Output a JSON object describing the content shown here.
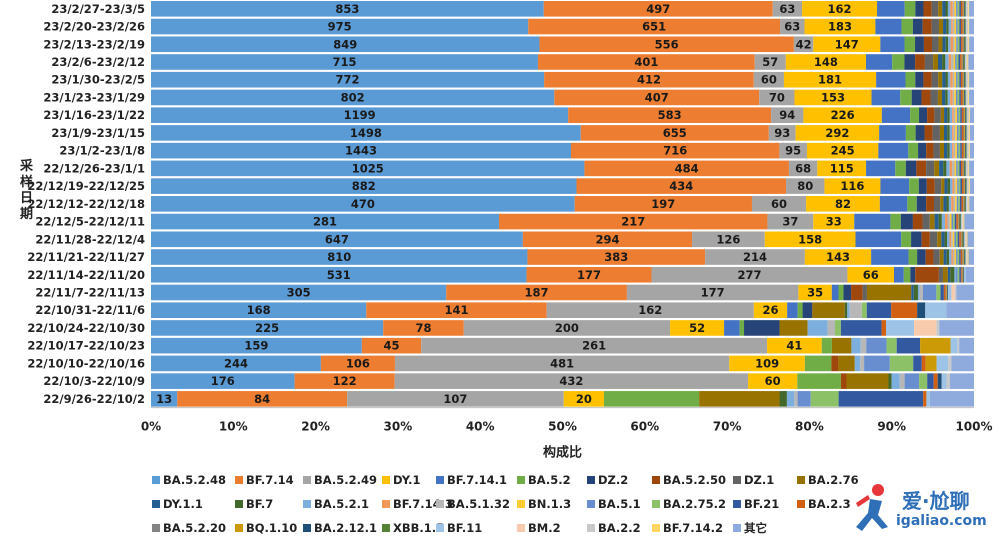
{
  "chart_data": {
    "type": "stacked_bar_horizontal_100",
    "ylabel": "采样日期",
    "xlabel": "构成比",
    "xticks": [
      "0%",
      "10%",
      "20%",
      "30%",
      "40%",
      "50%",
      "60%",
      "70%",
      "80%",
      "90%",
      "100%"
    ],
    "categories": [
      "23/2/27-23/3/5",
      "23/2/20-23/2/26",
      "23/2/13-23/2/19",
      "23/2/6-23/2/12",
      "23/1/30-23/2/5",
      "23/1/23-23/1/29",
      "23/1/16-23/1/22",
      "23/1/9-23/1/15",
      "23/1/2-23/1/8",
      "22/12/26-23/1/1",
      "22/12/19-22/12/25",
      "22/12/12-22/12/18",
      "22/12/5-22/12/11",
      "22/11/28-22/12/4",
      "22/11/21-22/11/27",
      "22/11/14-22/11/20",
      "22/11/7-22/11/13",
      "22/10/31-22/11/6",
      "22/10/24-22/10/30",
      "22/10/17-22/10/23",
      "22/10/10-22/10/16",
      "22/10/3-22/10/9",
      "22/9/26-22/10/2"
    ],
    "series": [
      {
        "name": "BA.5.2.48",
        "color": "#5b9bd5",
        "labels": [
          853,
          975,
          849,
          715,
          772,
          802,
          1199,
          1498,
          1443,
          1025,
          882,
          470,
          281,
          647,
          810,
          531,
          305,
          168,
          225,
          159,
          244,
          176,
          13
        ],
        "pct": [
          48.2,
          46.3,
          48.1,
          47.3,
          48.2,
          49.2,
          51.6,
          53.0,
          51.8,
          53.4,
          53.2,
          54.0,
          43.3,
          45.5,
          48.3,
          46.0,
          35.3,
          26.5,
          31.4,
          27.0,
          21.8,
          17.8,
          3.2
        ]
      },
      {
        "name": "BF.7.14",
        "color": "#ed7d31",
        "labels": [
          497,
          651,
          556,
          401,
          412,
          407,
          583,
          655,
          716,
          484,
          434,
          197,
          217,
          294,
          383,
          177,
          187,
          141,
          78,
          45,
          106,
          122,
          84
        ],
        "pct": [
          28.1,
          30.9,
          31.5,
          26.5,
          25.7,
          25.0,
          25.1,
          23.2,
          25.7,
          25.2,
          26.2,
          22.6,
          33.4,
          20.7,
          22.8,
          15.3,
          21.6,
          22.2,
          10.9,
          7.6,
          9.5,
          12.4,
          20.7
        ]
      },
      {
        "name": "BA.5.2.49",
        "color": "#a5a5a5",
        "labels": [
          63,
          63,
          42,
          57,
          60,
          70,
          94,
          93,
          95,
          68,
          80,
          60,
          37,
          126,
          214,
          277,
          177,
          162,
          200,
          261,
          481,
          432,
          107
        ],
        "pct": [
          3.6,
          3.0,
          2.4,
          3.8,
          3.7,
          4.3,
          4.0,
          3.3,
          3.4,
          3.5,
          4.8,
          6.9,
          5.7,
          8.9,
          12.8,
          24.0,
          20.5,
          25.5,
          27.9,
          44.3,
          42.9,
          43.8,
          26.4
        ]
      },
      {
        "name": "DY.1",
        "color": "#ffc000",
        "labels": [
          162,
          183,
          147,
          148,
          181,
          153,
          226,
          292,
          245,
          115,
          116,
          82,
          33,
          158,
          143,
          66,
          35,
          26,
          52,
          41,
          109,
          60,
          20
        ],
        "pct": [
          9.2,
          8.7,
          8.3,
          9.8,
          11.3,
          9.4,
          9.7,
          10.3,
          8.8,
          6.0,
          7.0,
          9.4,
          5.1,
          11.1,
          8.5,
          5.7,
          4.0,
          4.1,
          7.3,
          7.0,
          9.7,
          6.1,
          4.9
        ]
      },
      {
        "name": "BF.7.14.1",
        "color": "#4472c4",
        "labels": [],
        "pct": [
          3.4,
          3.2,
          3.0,
          3.2,
          3.6,
          3.5,
          3.5,
          3.3,
          3.7,
          3.6,
          3.6,
          3.5,
          4.5,
          5.6,
          4.8,
          1.2,
          0.8,
          1.3,
          2.1,
          0,
          0,
          0,
          0
        ]
      },
      {
        "name": "BA.5.2",
        "color": "#70ad47",
        "labels": [],
        "pct": [
          1.3,
          1.4,
          1.3,
          1.5,
          1.2,
          1.4,
          1.1,
          1.2,
          1.2,
          1.3,
          1.2,
          1.2,
          1.3,
          1.2,
          1.1,
          0.8,
          0.6,
          0.6,
          0.6,
          1.3,
          3.4,
          5.4,
          11.6
        ]
      },
      {
        "name": "DZ.2",
        "color": "#264478",
        "labels": [],
        "pct": [
          1.0,
          1.2,
          1.1,
          1.3,
          1.0,
          1.2,
          1.0,
          1.1,
          1.0,
          1.3,
          1.0,
          1.2,
          1.5,
          1.3,
          1.1,
          0.6,
          0.9,
          1.2,
          4.8,
          0,
          0,
          0,
          0
        ]
      },
      {
        "name": "BA.5.2.50",
        "color": "#9e480e",
        "labels": [],
        "pct": [
          1.0,
          1.1,
          1.0,
          1.2,
          1.0,
          1.1,
          0.9,
          1.0,
          0.9,
          1.2,
          1.0,
          1.0,
          1.2,
          1.0,
          1.0,
          2.9,
          1.4,
          0,
          0,
          0,
          0.9,
          0.7,
          0
        ]
      },
      {
        "name": "DZ.1",
        "color": "#636363",
        "labels": [],
        "pct": [
          0.8,
          0.9,
          0.8,
          1.0,
          0.8,
          0.9,
          0.8,
          0.9,
          0.8,
          1.0,
          0.8,
          0.8,
          0.9,
          0.9,
          0.8,
          0.5,
          0.5,
          0,
          0,
          0,
          0,
          0,
          0
        ]
      },
      {
        "name": "BA.2.76",
        "color": "#997300",
        "labels": [],
        "pct": [
          0.5,
          0.5,
          0.5,
          0.6,
          0.5,
          0.5,
          0.4,
          0.5,
          0.5,
          0.6,
          0.4,
          0.4,
          0.6,
          0.5,
          0.5,
          0.6,
          5.3,
          4.0,
          3.8,
          2.5,
          2.1,
          5.2,
          9.8
        ]
      },
      {
        "name": "DY.1.1",
        "color": "#255e91",
        "labels": [],
        "pct": [
          0.4,
          0.4,
          0.4,
          0.5,
          0.4,
          0.4,
          0.4,
          0.4,
          0.4,
          0.5,
          0.4,
          0.4,
          0.5,
          0.4,
          0.4,
          0.3,
          0.3,
          0,
          0,
          0,
          0,
          0,
          0
        ]
      },
      {
        "name": "BF.7",
        "color": "#43682b",
        "labels": [],
        "pct": [
          0.3,
          0.3,
          0.3,
          0.4,
          0.3,
          0.3,
          0.3,
          0.3,
          0.3,
          0.4,
          0.3,
          0.3,
          0.4,
          0.3,
          0.3,
          0.5,
          0.5,
          0.3,
          0,
          0,
          0,
          0.4,
          0.9
        ]
      },
      {
        "name": "BA.5.2.1",
        "color": "#7cafdd",
        "labels": [],
        "pct": [
          0.3,
          0.3,
          0.3,
          0.4,
          0.3,
          0.3,
          0.3,
          0.3,
          0.3,
          0.4,
          0.3,
          0.3,
          0.4,
          0.3,
          0.3,
          0.2,
          0.2,
          0.3,
          2.7,
          1.2,
          0.7,
          1.0,
          0.9
        ]
      },
      {
        "name": "BF.7.14.3",
        "color": "#f1975a",
        "labels": [],
        "pct": [
          0.3,
          0.2,
          0.3,
          0.3,
          0.3,
          0.3,
          0.2,
          0.2,
          0.2,
          0.3,
          0.2,
          0.3,
          0.3,
          0.2,
          0.2,
          0,
          0,
          0,
          0,
          0,
          0,
          0,
          0
        ]
      },
      {
        "name": "BA.5.1.32",
        "color": "#b7b7b7",
        "labels": [],
        "pct": [
          0.2,
          0.2,
          0.2,
          0.3,
          0.2,
          0.2,
          0.2,
          0.2,
          0.2,
          0.3,
          0.2,
          0.2,
          0.3,
          0.2,
          0.2,
          0,
          0.4,
          1.5,
          1.0,
          0.7,
          0.5,
          0.6,
          0.4
        ]
      },
      {
        "name": "BN.1.3",
        "color": "#ffcd33",
        "labels": [],
        "pct": [
          0.2,
          0.2,
          0.2,
          0.2,
          0.2,
          0.2,
          0.2,
          0.2,
          0.2,
          0.2,
          0.2,
          0.2,
          0.2,
          0.2,
          0.2,
          0,
          0,
          0,
          0,
          0,
          0,
          0,
          0
        ]
      },
      {
        "name": "BA.5.1",
        "color": "#698ed0",
        "labels": [],
        "pct": [
          0.2,
          0.2,
          0.2,
          0.2,
          0.2,
          0.2,
          0.2,
          0.2,
          0.2,
          0.2,
          0.2,
          0.2,
          0.2,
          0.2,
          0.2,
          0.2,
          1.6,
          0,
          0,
          2.6,
          3.3,
          1.8,
          1.6
        ]
      },
      {
        "name": "BA.2.75.2",
        "color": "#8cc168",
        "labels": [],
        "pct": [
          0.2,
          0.2,
          0.2,
          0.2,
          0.2,
          0.2,
          0.2,
          0.2,
          0.2,
          0.2,
          0.2,
          0.2,
          0.2,
          0.2,
          0.2,
          0.2,
          0.5,
          0.6,
          0.8,
          1.3,
          3.0,
          1.0,
          3.4
        ]
      },
      {
        "name": "BF.21",
        "color": "#335aa1",
        "labels": [],
        "pct": [
          0.2,
          0.2,
          0.2,
          0.2,
          0.2,
          0.2,
          0.2,
          0.2,
          0.2,
          0.2,
          0.2,
          0.2,
          0.2,
          0.2,
          0.2,
          0.2,
          0.4,
          3.0,
          5.5,
          3.0,
          1.1,
          0.8,
          10.3
        ]
      },
      {
        "name": "BA.2.3",
        "color": "#d26012",
        "labels": [],
        "pct": [
          0.2,
          0.2,
          0.2,
          0.2,
          0.2,
          0.2,
          0.2,
          0.2,
          0.2,
          0.2,
          0.2,
          0.2,
          0.2,
          0.2,
          0.2,
          0.1,
          0.2,
          3.2,
          0.6,
          0,
          0.5,
          0.5,
          0.4
        ]
      },
      {
        "name": "BA.5.2.20",
        "color": "#848484",
        "labels": [],
        "pct": [
          0.1,
          0.1,
          0.1,
          0.1,
          0.1,
          0.1,
          0.1,
          0.1,
          0.1,
          0.1,
          0.1,
          0.1,
          0.1,
          0.1,
          0.1,
          0.1,
          0.1,
          0,
          0,
          0,
          0,
          0,
          0
        ]
      },
      {
        "name": "BQ.1.10",
        "color": "#cc9a06",
        "labels": [],
        "pct": [
          0.1,
          0.1,
          0.1,
          0.1,
          0.1,
          0.1,
          0.1,
          0.1,
          0.1,
          0.1,
          0.1,
          0.1,
          0.1,
          0.1,
          0.1,
          0.1,
          0.1,
          0,
          0,
          3.9,
          1.4,
          0,
          0
        ]
      },
      {
        "name": "BA.2.12.1",
        "color": "#1f4e79",
        "labels": [],
        "pct": [
          0.1,
          0.1,
          0.1,
          0.1,
          0.1,
          0.1,
          0.1,
          0.1,
          0.1,
          0.1,
          0.1,
          0.1,
          0.1,
          0.1,
          0.1,
          0.1,
          0.1,
          1.0,
          0,
          0,
          0,
          0.5,
          0
        ]
      },
      {
        "name": "XBB.1.5",
        "color": "#548235",
        "labels": [],
        "pct": [
          0.1,
          0.1,
          0.1,
          0.1,
          0.1,
          0.1,
          0.1,
          0.1,
          0.1,
          0.1,
          0.1,
          0.1,
          0.1,
          0.1,
          0.1,
          0,
          0,
          0,
          0,
          0,
          0,
          0,
          0
        ]
      },
      {
        "name": "BF.11",
        "color": "#9dc3e6",
        "labels": [],
        "pct": [
          0.1,
          0.1,
          0.1,
          0.1,
          0.1,
          0.1,
          0.1,
          0.1,
          0.1,
          0.1,
          0.1,
          0.1,
          0.1,
          0.1,
          0.1,
          0.2,
          0.4,
          2.6,
          3.8,
          0.9,
          1.5,
          0.6,
          0.4
        ]
      },
      {
        "name": "BM.2",
        "color": "#f8cbad",
        "labels": [],
        "pct": [
          0.1,
          0.1,
          0.1,
          0.1,
          0.1,
          0.1,
          0.1,
          0.1,
          0.1,
          0.1,
          0.1,
          0.1,
          0.1,
          0.1,
          0.1,
          0,
          0.4,
          0,
          3.0,
          0,
          0,
          0,
          0
        ]
      },
      {
        "name": "BA.2.2",
        "color": "#c9c9c9",
        "labels": [],
        "pct": [
          0.1,
          0.1,
          0.1,
          0.1,
          0.1,
          0.1,
          0.1,
          0.1,
          0.1,
          0.1,
          0.1,
          0.1,
          0.1,
          0.1,
          0.1,
          0,
          0.2,
          0,
          0.4,
          0.2,
          0.4,
          0.4,
          0
        ]
      },
      {
        "name": "BF.7.14.2",
        "color": "#ffd966",
        "labels": [],
        "pct": [
          0.1,
          0.1,
          0.1,
          0.1,
          0.1,
          0.1,
          0.1,
          0.1,
          0.1,
          0.1,
          0.1,
          0.1,
          0.1,
          0.1,
          0.1,
          0,
          0,
          0,
          0,
          0,
          0,
          0,
          0
        ]
      },
      {
        "name": "其它",
        "color": "#8faadc",
        "labels": [],
        "pct": [
          0.6,
          0.6,
          0.6,
          0.7,
          0.6,
          0.6,
          0.5,
          0.5,
          0.5,
          0.6,
          0.5,
          0.6,
          1.2,
          0.8,
          0.7,
          1.0,
          2.1,
          3.4,
          4.7,
          1.9,
          2.9,
          3.0,
          5.4
        ]
      }
    ]
  },
  "watermark": {
    "brand_cn": "爱·尬聊",
    "url": "igaliao.com",
    "logo_icon": "running-figure-icon"
  }
}
